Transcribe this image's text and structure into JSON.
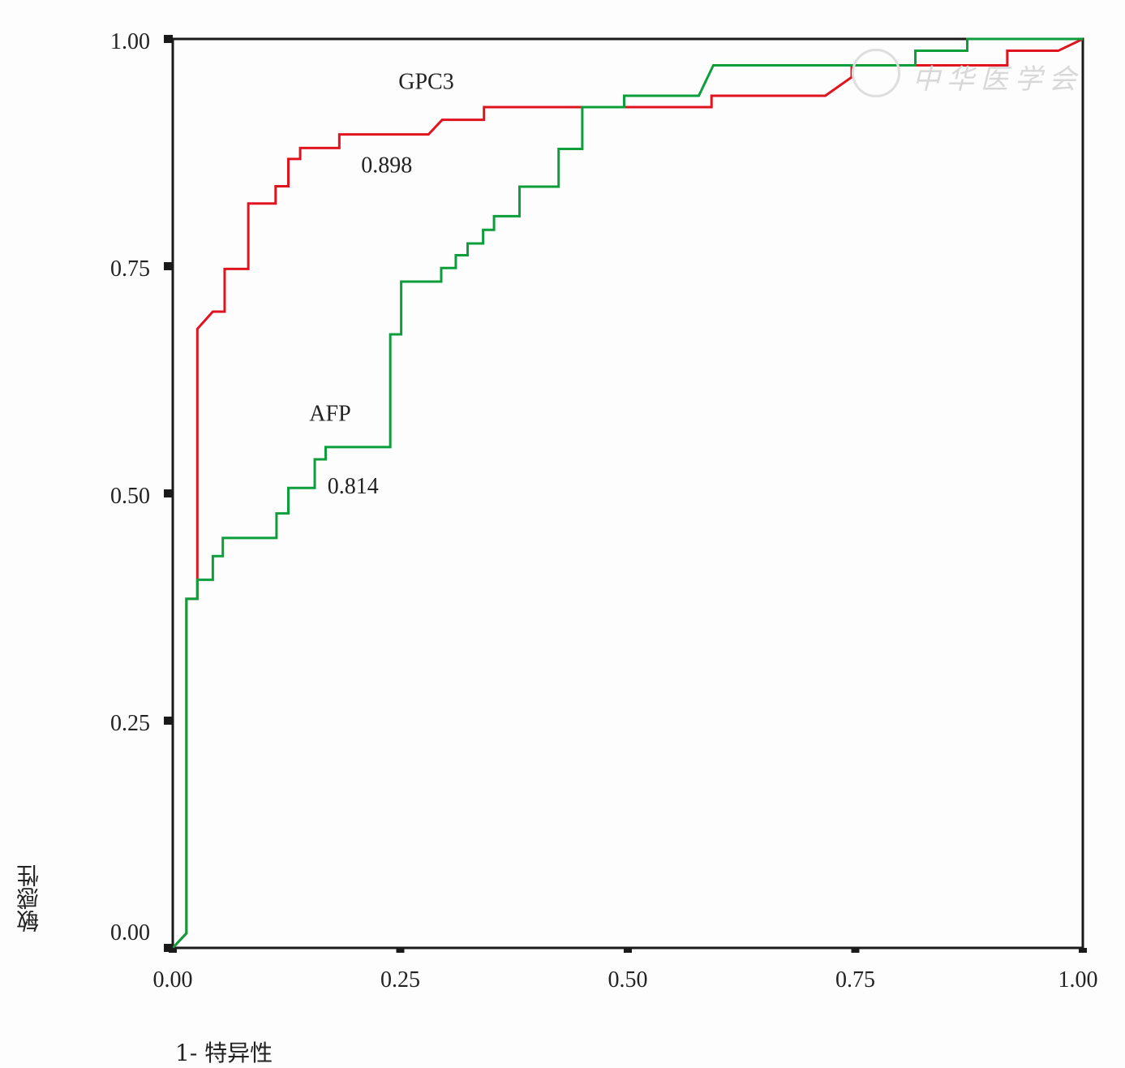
{
  "chart_data": {
    "type": "line",
    "title": "",
    "xlabel": "1- 特异性",
    "ylabel": "敏感性",
    "xlim": [
      0,
      1
    ],
    "ylim": [
      0,
      1
    ],
    "x_ticks": [
      "0.00",
      "0.25",
      "0.50",
      "0.75",
      "1.00"
    ],
    "y_ticks": [
      "0.00",
      "0.25",
      "0.50",
      "0.75",
      "1.00"
    ],
    "grid": false,
    "series": [
      {
        "name": "GPC3",
        "auc_label": "0.898",
        "color": "#e0141e",
        "points": [
          [
            0,
            0
          ],
          [
            0.015,
            0.016
          ],
          [
            0.015,
            0.384
          ],
          [
            0.027,
            0.384
          ],
          [
            0.027,
            0.681
          ],
          [
            0.044,
            0.7
          ],
          [
            0.057,
            0.7
          ],
          [
            0.057,
            0.747
          ],
          [
            0.083,
            0.747
          ],
          [
            0.083,
            0.819
          ],
          [
            0.113,
            0.819
          ],
          [
            0.113,
            0.838
          ],
          [
            0.127,
            0.838
          ],
          [
            0.127,
            0.868
          ],
          [
            0.14,
            0.868
          ],
          [
            0.14,
            0.88
          ],
          [
            0.183,
            0.88
          ],
          [
            0.183,
            0.895
          ],
          [
            0.281,
            0.895
          ],
          [
            0.296,
            0.911
          ],
          [
            0.342,
            0.911
          ],
          [
            0.342,
            0.925
          ],
          [
            0.592,
            0.925
          ],
          [
            0.592,
            0.9375
          ],
          [
            0.717,
            0.9375
          ],
          [
            0.746,
            0.958
          ],
          [
            0.746,
            0.971
          ],
          [
            0.917,
            0.971
          ],
          [
            0.917,
            0.987
          ],
          [
            0.973,
            0.987
          ],
          [
            1,
            1
          ]
        ]
      },
      {
        "name": "AFP",
        "auc_label": "0.814",
        "color": "#0d9e3c",
        "points": [
          [
            0,
            0
          ],
          [
            0.015,
            0.016
          ],
          [
            0.015,
            0.384
          ],
          [
            0.027,
            0.384
          ],
          [
            0.027,
            0.405
          ],
          [
            0.044,
            0.405
          ],
          [
            0.044,
            0.431
          ],
          [
            0.055,
            0.431
          ],
          [
            0.055,
            0.451
          ],
          [
            0.114,
            0.451
          ],
          [
            0.114,
            0.478
          ],
          [
            0.127,
            0.478
          ],
          [
            0.127,
            0.506
          ],
          [
            0.156,
            0.506
          ],
          [
            0.156,
            0.5375
          ],
          [
            0.168,
            0.5375
          ],
          [
            0.168,
            0.551
          ],
          [
            0.239,
            0.551
          ],
          [
            0.239,
            0.675
          ],
          [
            0.251,
            0.675
          ],
          [
            0.251,
            0.733
          ],
          [
            0.295,
            0.733
          ],
          [
            0.295,
            0.748
          ],
          [
            0.311,
            0.748
          ],
          [
            0.311,
            0.762
          ],
          [
            0.324,
            0.762
          ],
          [
            0.324,
            0.775
          ],
          [
            0.341,
            0.775
          ],
          [
            0.341,
            0.79
          ],
          [
            0.353,
            0.79
          ],
          [
            0.353,
            0.805
          ],
          [
            0.381,
            0.805
          ],
          [
            0.381,
            0.8375
          ],
          [
            0.424,
            0.8375
          ],
          [
            0.424,
            0.879
          ],
          [
            0.45,
            0.879
          ],
          [
            0.45,
            0.925
          ],
          [
            0.496,
            0.925
          ],
          [
            0.496,
            0.9375
          ],
          [
            0.578,
            0.9375
          ],
          [
            0.594,
            0.971
          ],
          [
            0.816,
            0.971
          ],
          [
            0.816,
            0.987
          ],
          [
            0.873,
            0.987
          ],
          [
            0.873,
            1
          ],
          [
            1,
            1
          ]
        ]
      }
    ],
    "annotations": [
      {
        "text": "GPC3",
        "x": 0.248,
        "y": 0.945
      },
      {
        "text": "0.898",
        "x": 0.207,
        "y": 0.853
      },
      {
        "text": "AFP",
        "x": 0.15,
        "y": 0.58
      },
      {
        "text": "0.814",
        "x": 0.17,
        "y": 0.5
      }
    ]
  },
  "watermark": "中华医学会"
}
